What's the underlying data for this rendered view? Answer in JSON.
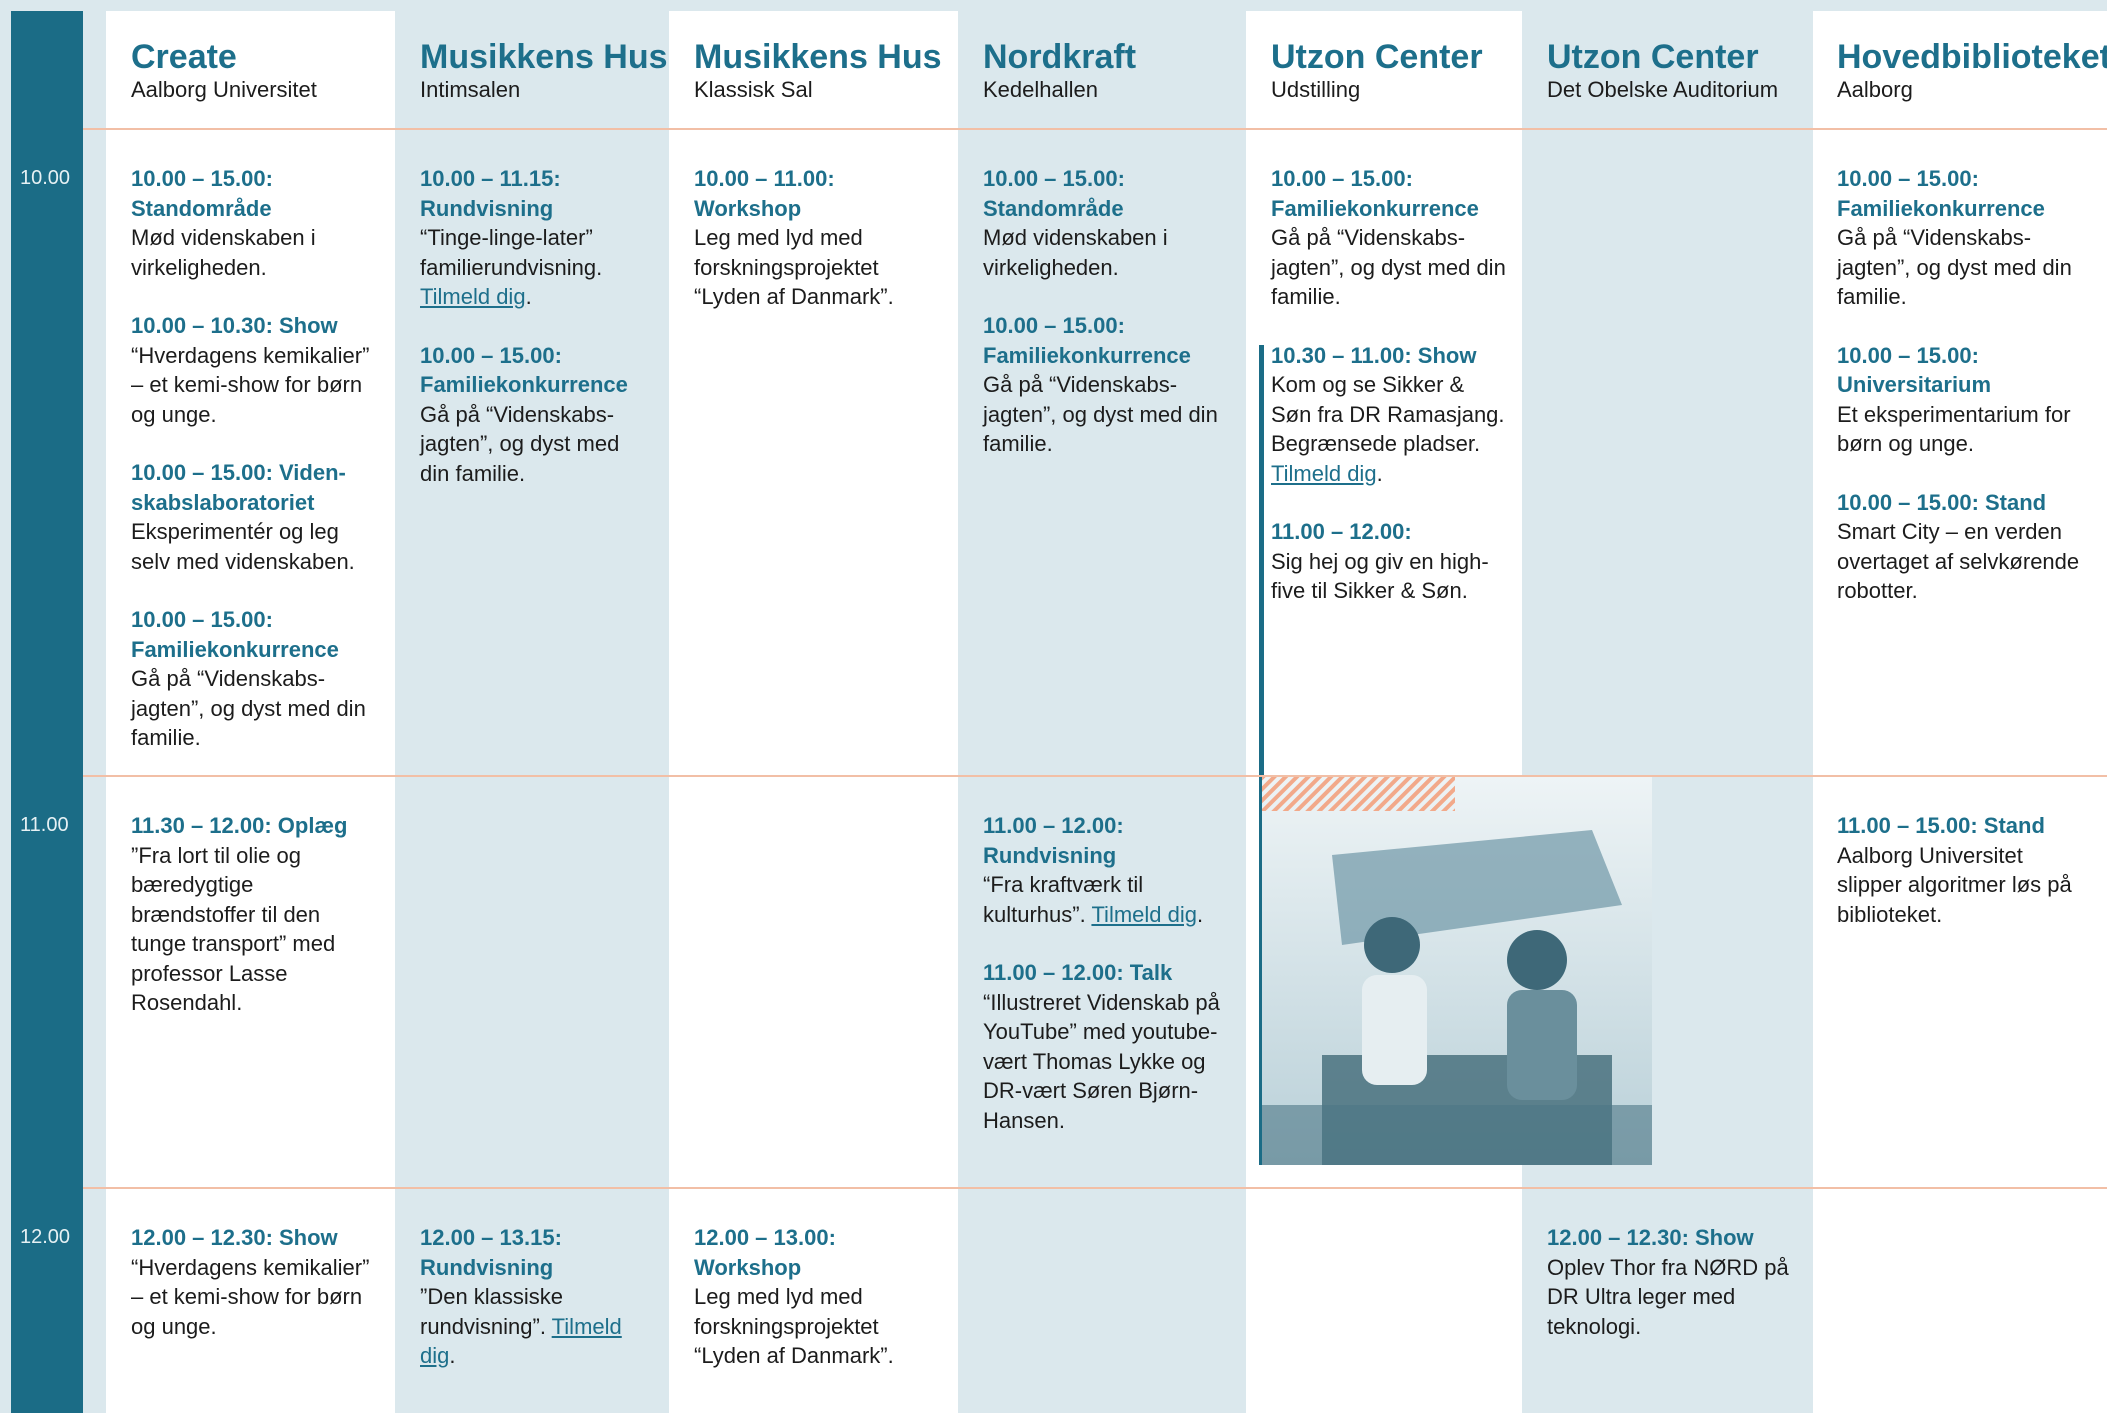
{
  "times": [
    "10.00",
    "11.00",
    "12.00"
  ],
  "columns": [
    {
      "venue": "Create",
      "place": "Aalborg Universitet",
      "slots": [
        [
          {
            "heading": "10.00 – 15.00: Standområde",
            "text": "Mød videnskaben i virkeligheden."
          },
          {
            "heading": "10.00 – 10.30: Show",
            "text": "“Hverdagens kemikalier” – et kemi-show for børn og unge."
          },
          {
            "heading": "10.00 – 15.00: Viden-skabslaboratoriet",
            "text": "Eksperimentér og leg selv med videnskaben."
          },
          {
            "heading": "10.00 – 15.00: Familiekonkurrence",
            "text": "Gå på “Videnskabs-jagten”, og dyst med din familie."
          }
        ],
        [
          {
            "heading": "11.30 – 12.00: Oplæg",
            "text": "”Fra lort til olie og bæredygtige brændstoffer til den tunge transport” med professor Lasse Rosendahl."
          }
        ],
        [
          {
            "heading": "12.00 – 12.30: Show",
            "text": "“Hverdagens kemikalier” – et kemi-show for børn og unge."
          }
        ]
      ]
    },
    {
      "venue": "Musikkens Hus",
      "place": "Intimsalen",
      "slots": [
        [
          {
            "heading": "10.00 – 11.15: Rundvisning",
            "text": "“Tinge-linge-later” familierundvisning.",
            "link": "Tilmeld dig",
            "after": "."
          },
          {
            "heading": "10.00 – 15.00: Familiekonkurrence",
            "text": "Gå på “Videnskabs-jagten”, og dyst med din familie."
          }
        ],
        [],
        [
          {
            "heading": "12.00 – 13.15: Rundvisning",
            "text": "”Den klassiske rundvisning”.",
            "link": "Tilmeld dig",
            "after": "."
          }
        ]
      ]
    },
    {
      "venue": "Musikkens Hus",
      "place": "Klassisk Sal",
      "slots": [
        [
          {
            "heading": "10.00 – 11.00: Workshop",
            "text": "Leg med lyd med forskningsprojektet “Lyden af Danmark”."
          }
        ],
        [],
        [
          {
            "heading": "12.00 – 13.00: Workshop",
            "text": "Leg med lyd med forskningsprojektet “Lyden af Danmark”."
          }
        ]
      ]
    },
    {
      "venue": "Nordkraft",
      "place": "Kedelhallen",
      "slots": [
        [
          {
            "heading": "10.00 – 15.00: Standområde",
            "text": "Mød videnskaben i virkeligheden."
          },
          {
            "heading": "10.00 – 15.00: Familiekonkurrence",
            "text": "Gå på “Videnskabs-jagten”, og dyst med din familie."
          }
        ],
        [
          {
            "heading": "11.00 – 12.00: Rundvisning",
            "text": "“Fra kraftværk til kulturhus”.",
            "link": "Tilmeld dig",
            "after": "."
          },
          {
            "heading": "11.00 – 12.00: Talk",
            "text": "“Illustreret Videnskab på YouTube” med youtube-vært Thomas Lykke og DR-vært Søren Bjørn-Hansen."
          }
        ],
        []
      ]
    },
    {
      "venue": "Utzon Center",
      "place": "Udstilling",
      "slots": [
        [
          {
            "heading": "10.00 – 15.00: Familiekonkurrence",
            "text": "Gå på “Videnskabs-jagten”, og dyst med din familie."
          },
          {
            "heading": "10.30 – 11.00: Show",
            "text": "Kom og se Sikker & Søn fra DR Ramasjang. Begrænsede pladser.",
            "link": "Tilmeld dig",
            "after": "."
          },
          {
            "heading": "11.00 – 12.00:",
            "text": "Sig hej og giv en high-five til Sikker & Søn."
          }
        ],
        [],
        []
      ]
    },
    {
      "venue": "Utzon Center",
      "place": "Det Obelske Auditorium",
      "slots": [
        [],
        [],
        [
          {
            "heading": "12.00 – 12.30: Show",
            "text": "Oplev Thor fra NØRD på DR Ultra leger med teknologi."
          }
        ]
      ]
    },
    {
      "venue": "Hovedbiblioteket",
      "place": "Aalborg",
      "slots": [
        [
          {
            "heading": "10.00 – 15.00: Familiekonkurrence",
            "text": "Gå på “Videnskabs-jagten”, og dyst med din familie."
          },
          {
            "heading": "10.00 – 15.00: Universitarium",
            "text": "Et eksperimentarium for børn og unge."
          },
          {
            "heading": "10.00 – 15.00: Stand",
            "text": "Smart City – en verden overtaget af selvkørende robotter."
          }
        ],
        [
          {
            "heading": "11.00 – 15.00: Stand",
            "text": "Aalborg Universitet slipper algoritmer løs på biblioteket."
          }
        ],
        []
      ]
    }
  ]
}
